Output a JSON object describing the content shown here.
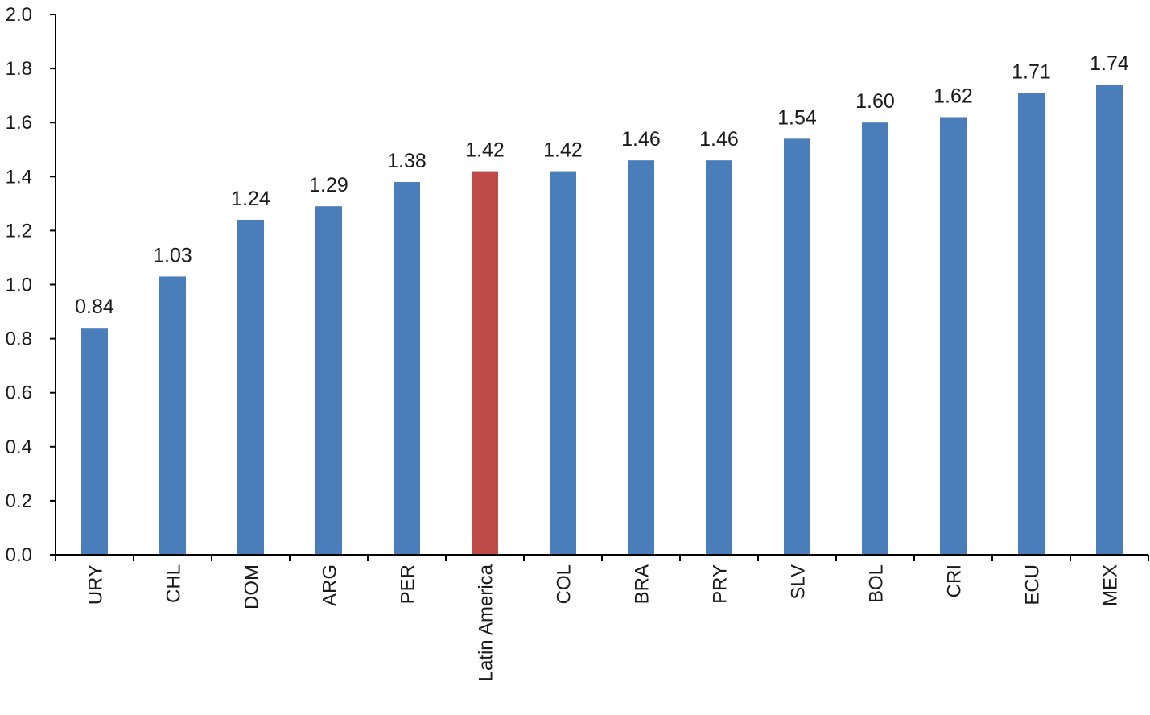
{
  "chart_data": {
    "type": "bar",
    "categories": [
      "URY",
      "CHL",
      "DOM",
      "ARG",
      "PER",
      "Latin America",
      "COL",
      "BRA",
      "PRY",
      "SLV",
      "BOL",
      "CRI",
      "ECU",
      "MEX"
    ],
    "values": [
      0.84,
      1.03,
      1.24,
      1.29,
      1.38,
      1.42,
      1.42,
      1.46,
      1.46,
      1.54,
      1.6,
      1.62,
      1.71,
      1.74
    ],
    "data_labels": [
      "0.84",
      "1.03",
      "1.24",
      "1.29",
      "1.38",
      "1.42",
      "1.42",
      "1.46",
      "1.46",
      "1.54",
      "1.60",
      "1.62",
      "1.71",
      "1.74"
    ],
    "highlight_category": "Latin America",
    "title": "",
    "xlabel": "",
    "ylabel": "",
    "ylim": [
      0,
      2.0
    ],
    "yticks": [
      0.0,
      0.2,
      0.4,
      0.6,
      0.8,
      1.0,
      1.2,
      1.4,
      1.6,
      1.8,
      2.0
    ],
    "ytick_labels": [
      "0.0",
      "0.2",
      "0.4",
      "0.6",
      "0.8",
      "1.0",
      "1.2",
      "1.4",
      "1.6",
      "1.8",
      "2.0"
    ],
    "grid": false,
    "legend": "none",
    "colors": {
      "bar": "#4a7ebb",
      "highlight": "#be4b48"
    }
  }
}
